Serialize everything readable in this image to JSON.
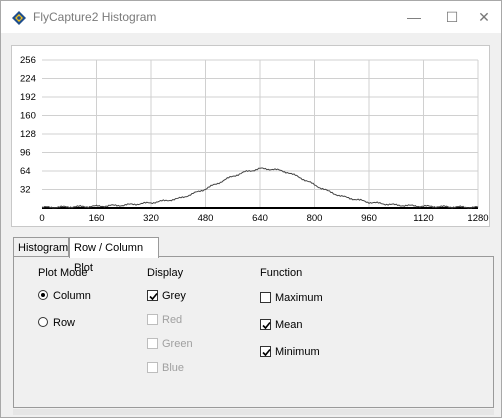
{
  "window": {
    "title": "FlyCapture2 Histogram",
    "minimize_glyph": "—",
    "maximize_glyph": "☐",
    "close_glyph": "✕"
  },
  "tabs": [
    {
      "label": "Histogram",
      "active": false
    },
    {
      "label": "Row / Column Plot",
      "active": true
    }
  ],
  "plot_mode": {
    "label": "Plot Mode",
    "options": [
      {
        "label": "Column",
        "selected": true
      },
      {
        "label": "Row",
        "selected": false
      }
    ]
  },
  "display": {
    "label": "Display",
    "options": [
      {
        "label": "Grey",
        "checked": true,
        "enabled": true
      },
      {
        "label": "Red",
        "checked": false,
        "enabled": false
      },
      {
        "label": "Green",
        "checked": false,
        "enabled": false
      },
      {
        "label": "Blue",
        "checked": false,
        "enabled": false
      }
    ]
  },
  "function": {
    "label": "Function",
    "options": [
      {
        "label": "Maximum",
        "checked": false
      },
      {
        "label": "Mean",
        "checked": true
      },
      {
        "label": "Minimum",
        "checked": true
      }
    ]
  },
  "chart_data": {
    "type": "line",
    "xlim": [
      0,
      1280
    ],
    "ylim": [
      0,
      256
    ],
    "x_ticks": [
      0,
      160,
      320,
      480,
      640,
      800,
      960,
      1120,
      1280
    ],
    "y_ticks": [
      32,
      64,
      96,
      128,
      160,
      192,
      224,
      256
    ],
    "grid": true,
    "series": [
      {
        "color": "#444444",
        "x": [
          0,
          80,
          160,
          240,
          320,
          400,
          440,
          480,
          520,
          560,
          600,
          640,
          680,
          720,
          760,
          800,
          840,
          880,
          960,
          1040,
          1120,
          1200,
          1280
        ],
        "values": [
          1,
          2,
          3,
          5,
          9,
          16,
          24,
          33,
          44,
          55,
          63,
          68,
          67,
          62,
          52,
          40,
          29,
          20,
          10,
          5,
          3,
          2,
          1
        ]
      }
    ]
  }
}
